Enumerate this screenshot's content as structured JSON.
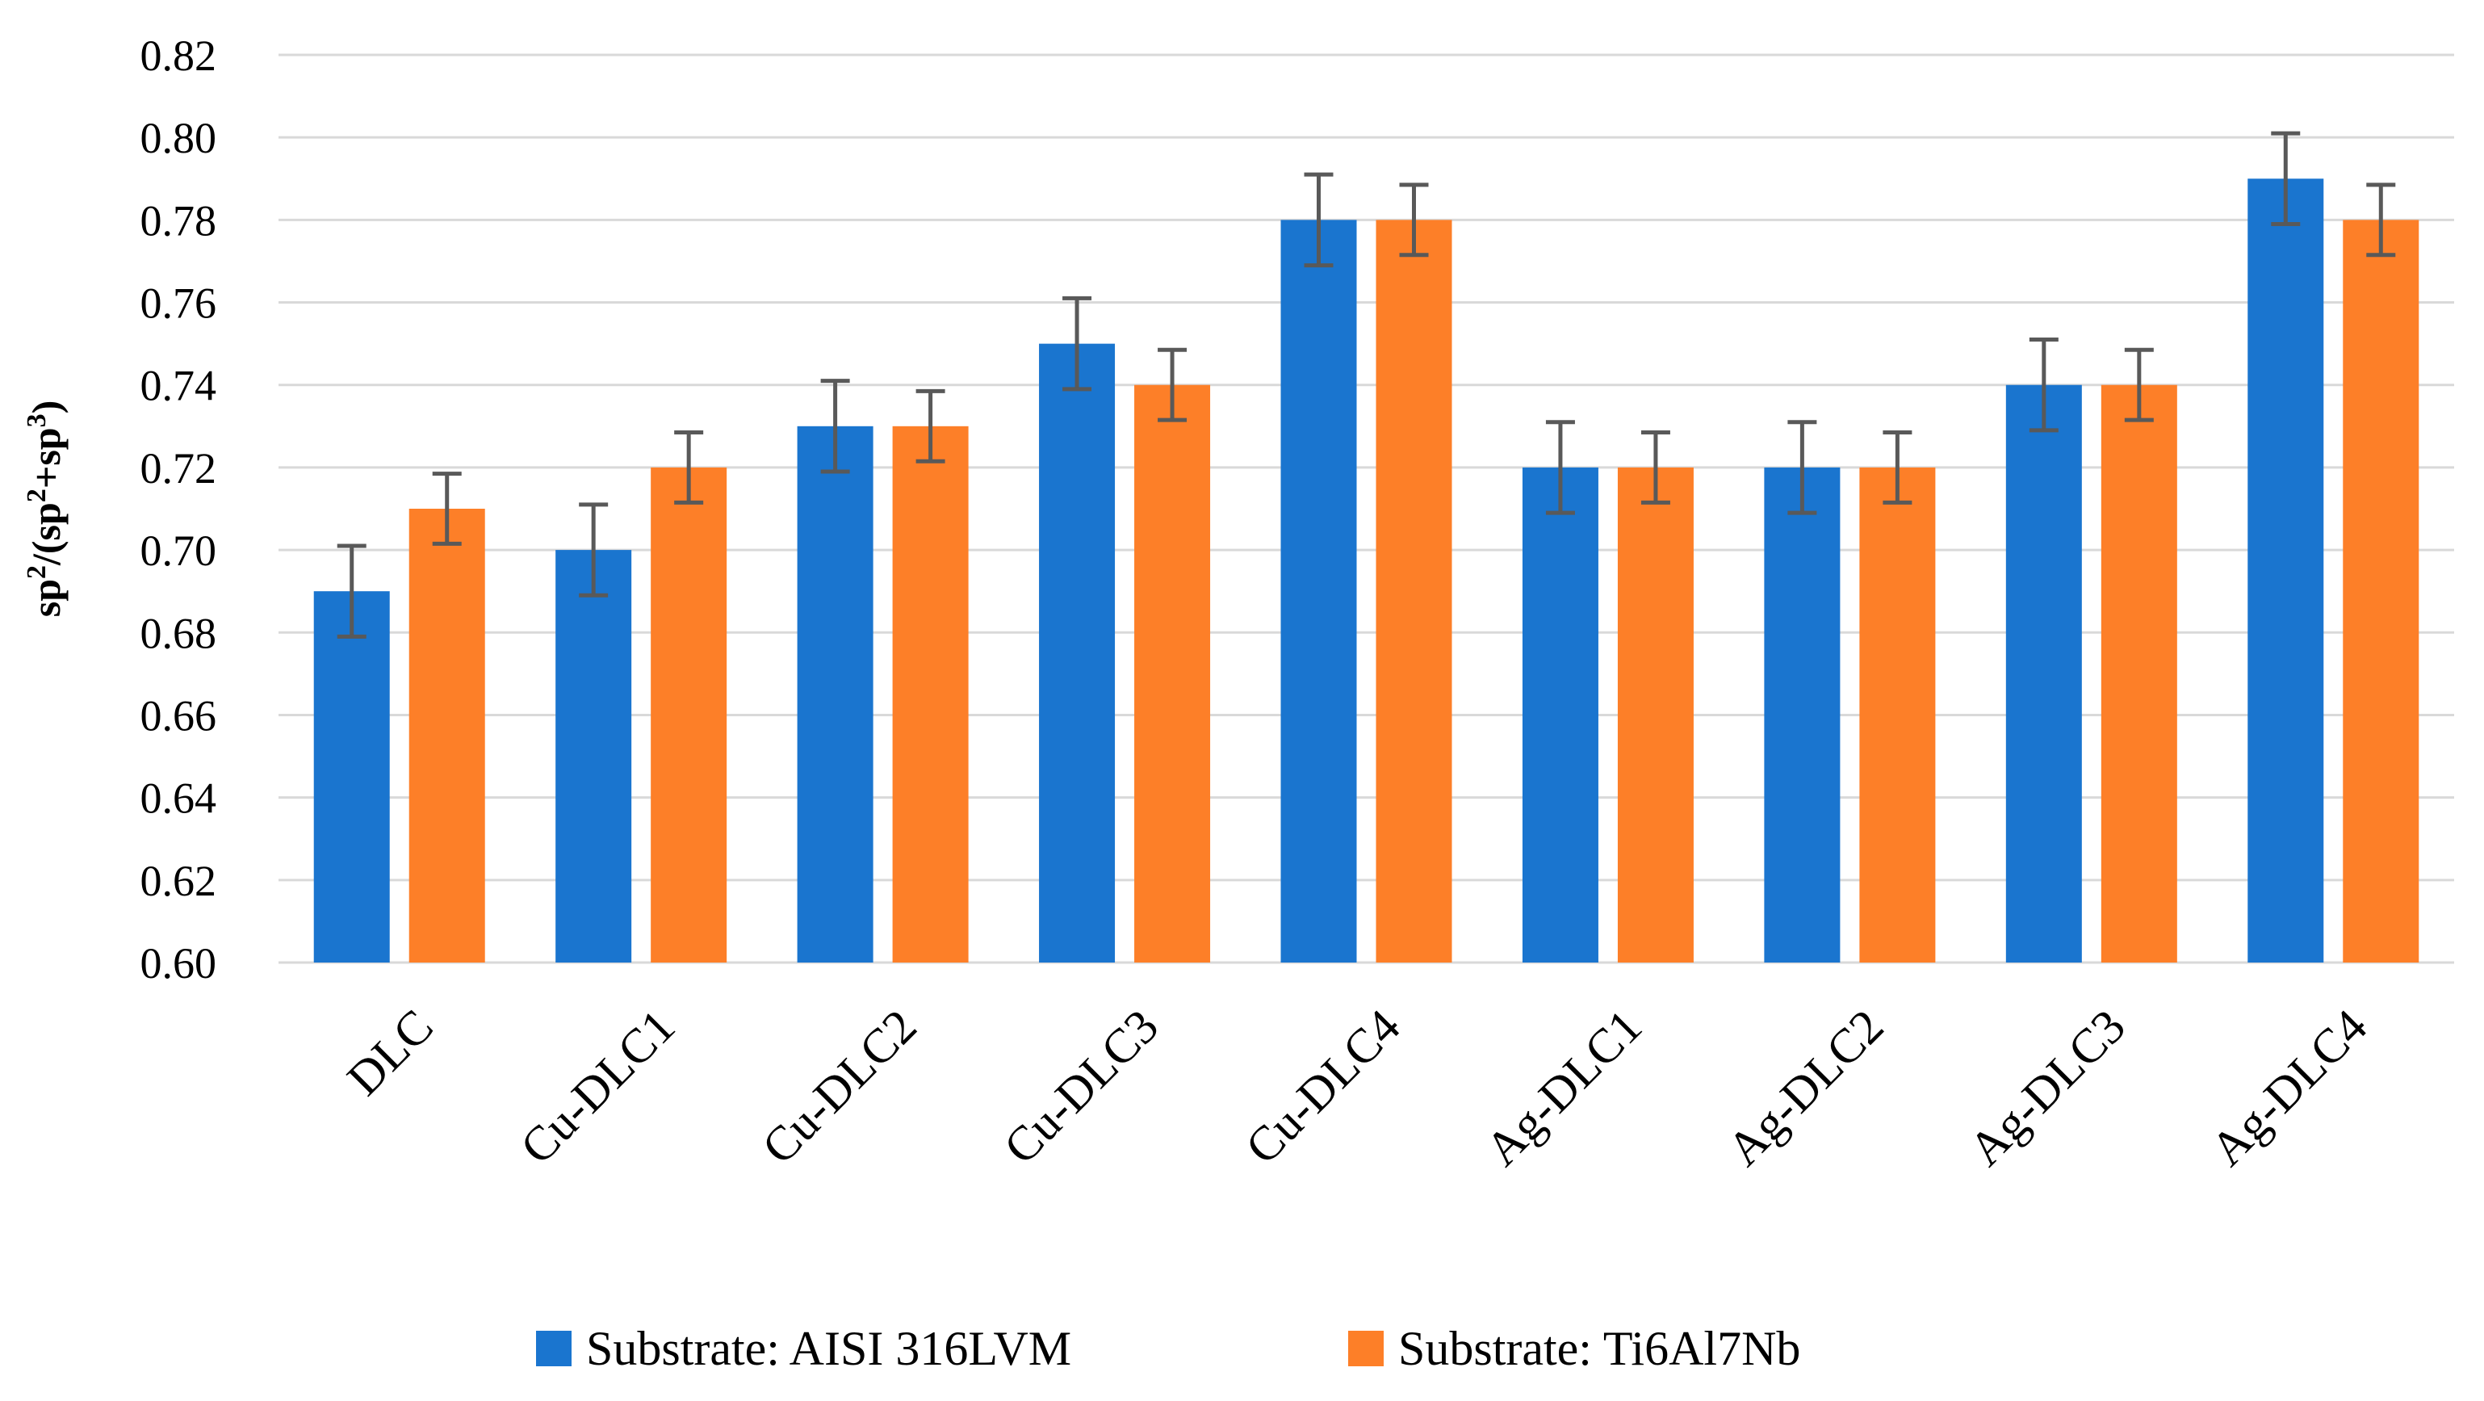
{
  "chart_data": {
    "type": "bar",
    "title": "",
    "xlabel": "",
    "ylabel": "sp2/(sp2+sp3)",
    "ylabel_parts": {
      "base": "sp",
      "exp_a": "2",
      "open": "/(sp",
      "exp_b": "2",
      "plus": "+sp",
      "exp_c": "3",
      "close": ")"
    },
    "ylim": [
      0.6,
      0.82
    ],
    "yticks": [
      "0.60",
      "0.62",
      "0.64",
      "0.66",
      "0.68",
      "0.70",
      "0.72",
      "0.74",
      "0.76",
      "0.78",
      "0.80",
      "0.82"
    ],
    "grid": true,
    "legend_position": "bottom",
    "categories": [
      "DLC",
      "Cu-DLC1",
      "Cu-DLC2",
      "Cu-DLC3",
      "Cu-DLC4",
      "Ag-DLC1",
      "Ag-DLC2",
      "Ag-DLC3",
      "Ag-DLC4"
    ],
    "series": [
      {
        "name": "Substrate: AISI 316LVM",
        "color": "#1a75cf",
        "values": [
          0.69,
          0.7,
          0.73,
          0.75,
          0.78,
          0.72,
          0.72,
          0.74,
          0.79
        ],
        "errors": [
          0.011,
          0.011,
          0.011,
          0.011,
          0.011,
          0.011,
          0.011,
          0.011,
          0.011
        ]
      },
      {
        "name": "Substrate: Ti6Al7Nb",
        "color": "#fd7f28",
        "values": [
          0.71,
          0.72,
          0.73,
          0.74,
          0.78,
          0.72,
          0.72,
          0.74,
          0.78
        ],
        "errors": [
          0.0085,
          0.0085,
          0.0085,
          0.0085,
          0.0085,
          0.0085,
          0.0085,
          0.0085,
          0.0085
        ]
      }
    ],
    "colors": {
      "grid": "#d9d9d9",
      "error_bar": "#595959"
    }
  }
}
